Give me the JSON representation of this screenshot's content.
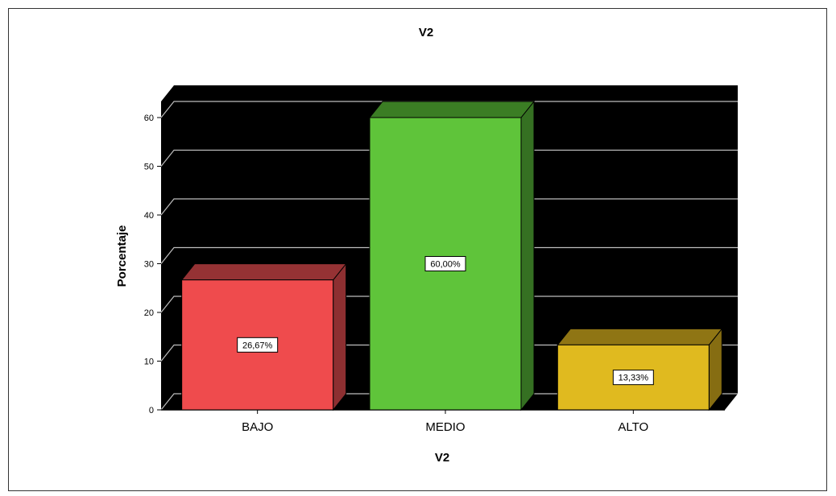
{
  "chart_data": {
    "type": "bar",
    "title": "V2",
    "xlabel": "V2",
    "ylabel": "Porcentaje",
    "categories": [
      "BAJO",
      "MEDIO",
      "ALTO"
    ],
    "values": [
      26.67,
      60.0,
      13.33
    ],
    "data_labels": [
      "26,67%",
      "60,00%",
      "13,33%"
    ],
    "yticks": [
      0,
      10,
      20,
      30,
      40,
      50,
      60
    ],
    "ylim": [
      0,
      63.3
    ],
    "grid": true,
    "style": "3d",
    "colors": {
      "plot_background": "#000000",
      "gridline": "#bdbdbd",
      "bars": [
        {
          "front": "#ef4b4d",
          "top": "#953234",
          "side": "#8d2f31"
        },
        {
          "front": "#5fc43a",
          "top": "#3b7d24",
          "side": "#357022"
        },
        {
          "front": "#e0ba1f",
          "top": "#8f7514",
          "side": "#866d12"
        }
      ]
    }
  }
}
